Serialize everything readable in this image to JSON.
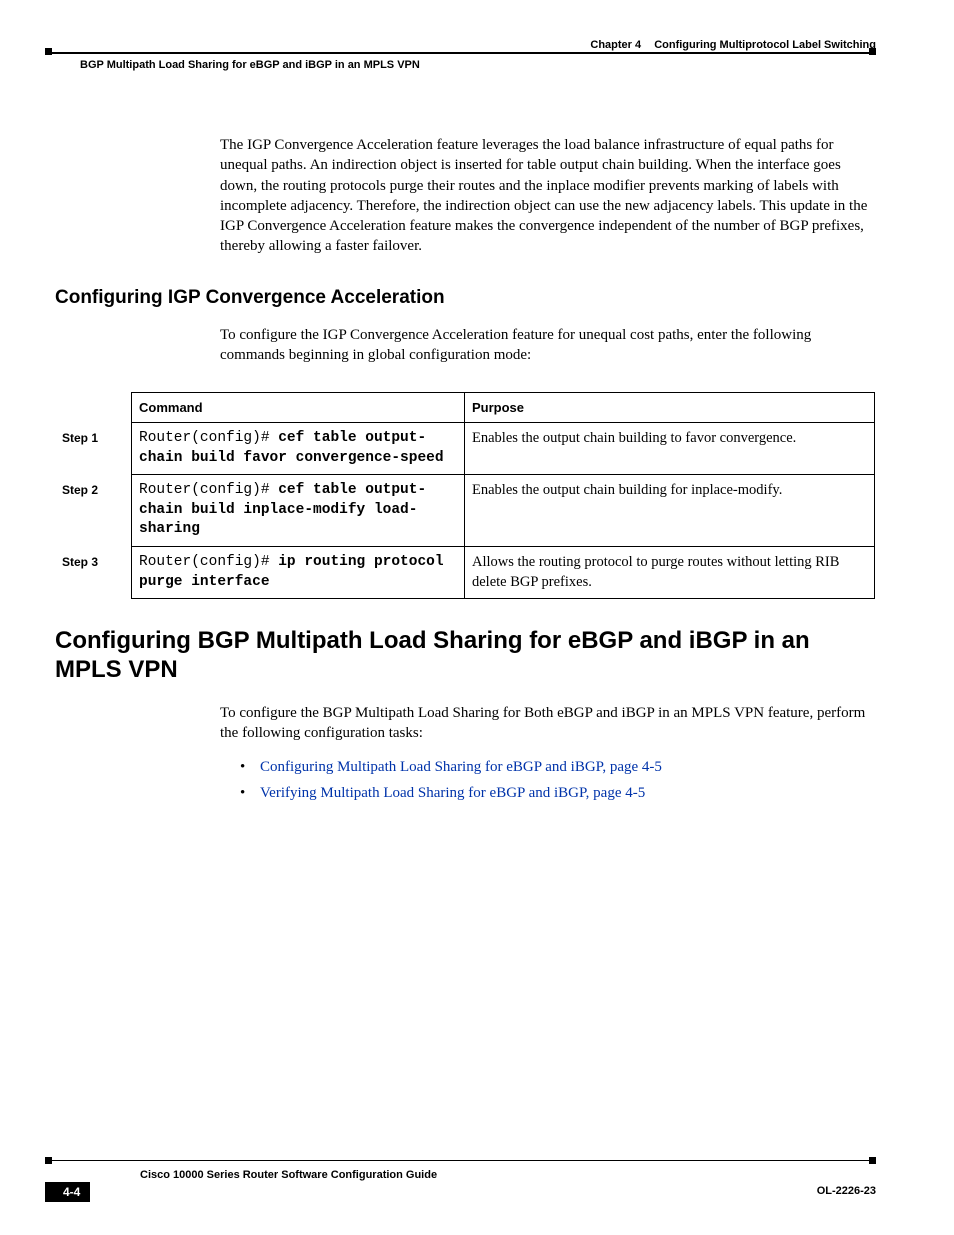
{
  "header": {
    "chapter_label": "Chapter 4",
    "chapter_title": "Configuring Multiprotocol Label Switching",
    "section_left": "BGP Multipath Load Sharing for eBGP and iBGP in an MPLS VPN"
  },
  "intro_paragraph": "The IGP Convergence Acceleration feature leverages the load balance infrastructure of equal paths for unequal paths. An indirection object is inserted for table output chain building. When the interface goes down, the routing protocols purge their routes and the inplace modifier prevents marking of labels with incomplete adjacency. Therefore, the indirection object can use the new adjacency labels. This update in the IGP Convergence Acceleration feature makes the convergence independent of the number of BGP prefixes, thereby allowing a faster failover.",
  "h2_title": "Configuring IGP Convergence Acceleration",
  "h2_intro": "To configure the IGP Convergence Acceleration feature for unequal cost paths, enter the following commands beginning in global configuration mode:",
  "table": {
    "columns": {
      "command": "Command",
      "purpose": "Purpose"
    },
    "rows": [
      {
        "step": "Step 1",
        "prompt": "Router(config)# ",
        "cmd": "cef table output-chain build favor convergence-speed",
        "purpose": "Enables the output chain building to favor convergence."
      },
      {
        "step": "Step 2",
        "prompt": "Router(config)# ",
        "cmd": "cef table output-chain build inplace-modify load-sharing",
        "purpose": "Enables the output chain building for inplace-modify."
      },
      {
        "step": "Step 3",
        "prompt": "Router(config)# ",
        "cmd": "ip routing protocol purge interface",
        "purpose": "Allows the routing protocol to purge routes without letting RIB delete BGP prefixes."
      }
    ]
  },
  "h1_title": "Configuring BGP Multipath Load Sharing for eBGP and iBGP in an MPLS VPN",
  "h1_intro": "To configure the BGP Multipath Load Sharing for Both eBGP and iBGP in an MPLS VPN feature, perform the following configuration tasks:",
  "links": [
    "Configuring Multipath Load Sharing for eBGP and iBGP, page 4-5",
    "Verifying Multipath Load Sharing for eBGP and iBGP, page 4-5"
  ],
  "footer": {
    "book_title": "Cisco 10000 Series Router Software Configuration Guide",
    "page_number": "4-4",
    "doc_number": "OL-2226-23"
  },
  "colors": {
    "link": "#0033aa",
    "text": "#000000",
    "background": "#ffffff"
  },
  "fonts": {
    "body": "Times New Roman",
    "headings": "Arial",
    "code": "Courier New"
  }
}
